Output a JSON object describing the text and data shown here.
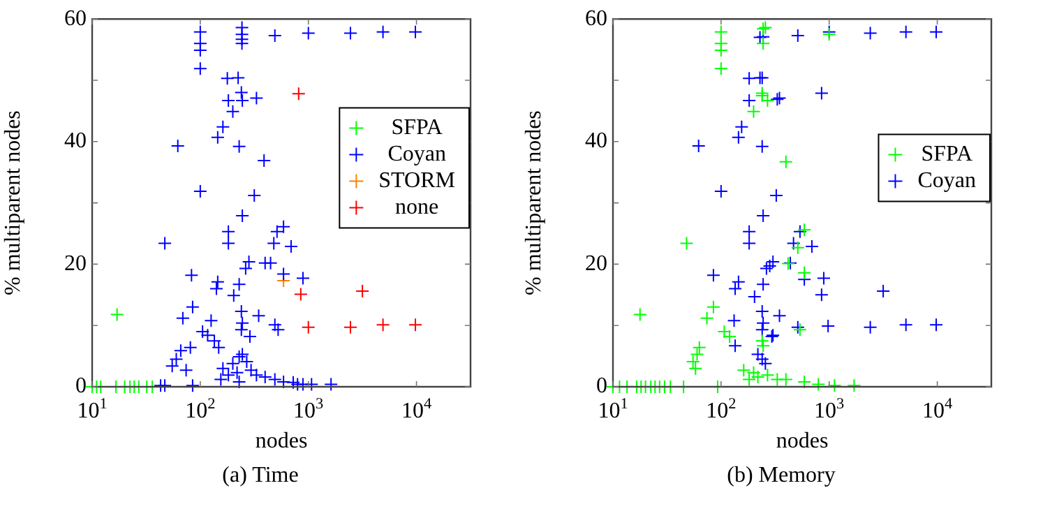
{
  "chart_data": [
    {
      "type": "scatter",
      "title": "(a) Time",
      "xlabel": "nodes",
      "ylabel": "% multiparent nodes",
      "log": "x",
      "marker": "cross",
      "grid": false,
      "legend": "right",
      "xlim": [
        10,
        31623
      ],
      "ylim": [
        0,
        60
      ],
      "xticks": [
        {
          "value": 10,
          "label": "10$^{1}$"
        },
        {
          "value": 100,
          "label": "10$^{2}$"
        },
        {
          "value": 1000,
          "label": "10$^{3}$"
        },
        {
          "value": 10000,
          "label": "10$^{4}$"
        }
      ],
      "yticks": [
        0,
        {
          "value": 10,
          "label": null
        },
        20,
        {
          "value": 30,
          "label": null
        },
        40,
        {
          "value": 50,
          "label": null
        },
        60
      ],
      "series": [
        {
          "name": "SFPA",
          "color": "#00ff00",
          "x": [
            17,
            10,
            11,
            12,
            16.6,
            20,
            22.4,
            24.5,
            27,
            32,
            36
          ],
          "values": [
            11.8,
            0,
            0,
            0,
            0,
            0,
            0,
            0,
            0,
            0,
            0
          ]
        },
        {
          "name": "Coyan",
          "color": "#0000ff",
          "x": [
            100,
            100,
            100,
            100,
            243,
            243,
            243,
            243,
            490,
            1000,
            2450,
            4900,
            9770,
            178,
            224,
            240,
            182,
            245,
            331,
            200,
            162,
            145,
            62,
            229,
            389,
            100,
            316,
            245,
            182,
            182,
            47,
            589,
            513,
            479,
            692,
            589,
            282,
            263,
            398,
            447,
            83,
            145,
            141,
            229,
            204,
            891,
            85,
            69,
            126,
            240,
            245,
            347,
            490,
            525,
            240,
            105,
            117,
            135,
            288,
            148,
            81,
            66,
            60,
            55,
            74,
            162,
            200,
            229,
            245,
            269,
            219,
            182,
            295,
            331,
            398,
            490,
            589,
            724,
            891,
            1070,
            1620,
            155,
            229,
            85,
            47,
            43,
            794
          ],
          "values": [
            57.9,
            56,
            54.9,
            51.9,
            58.6,
            57.5,
            56.7,
            56,
            57.3,
            57.7,
            57.7,
            57.9,
            57.9,
            50.3,
            50.4,
            48,
            46.7,
            46.7,
            47.1,
            44.9,
            42.4,
            40.7,
            39.3,
            39.2,
            36.9,
            31.9,
            31.2,
            27.9,
            25.3,
            23.4,
            23.4,
            26.1,
            25.3,
            23.4,
            22.9,
            18.4,
            20.4,
            19.3,
            20.2,
            20.2,
            18.2,
            17.1,
            16,
            16.7,
            14.9,
            17.7,
            13,
            11.2,
            10.8,
            12.3,
            10.4,
            11.6,
            10.1,
            9.3,
            9.3,
            9,
            8.4,
            7.5,
            8.2,
            6.4,
            6.4,
            5.9,
            4.5,
            3.4,
            2.7,
            3,
            3.8,
            4.9,
            5.3,
            4.1,
            2.3,
            1.9,
            2.7,
            1.9,
            1.6,
            1.2,
            0.8,
            0.7,
            0.4,
            0.4,
            0.4,
            1.2,
            0.8,
            0.2,
            0.2,
            0.2,
            0.4
          ]
        },
        {
          "name": "STORM",
          "color": "#ff8000",
          "x": [
            589
          ],
          "values": [
            17.3
          ]
        },
        {
          "name": "none",
          "color": "#ff0000",
          "x": [
            813,
            851,
            3160,
            1000,
            2450,
            4900,
            9770
          ],
          "values": [
            47.8,
            15.1,
            15.6,
            9.7,
            9.7,
            10.1,
            10.1
          ]
        }
      ]
    },
    {
      "type": "scatter",
      "title": "(b) Memory",
      "xlabel": "nodes",
      "ylabel": "% multiparent nodes",
      "log": "x",
      "marker": "cross",
      "grid": false,
      "legend": "right",
      "xlim": [
        10,
        31623
      ],
      "ylim": [
        0,
        60
      ],
      "xticks": [
        {
          "value": 10,
          "label": "10$^{1}$"
        },
        {
          "value": 100,
          "label": "10$^{2}$"
        },
        {
          "value": 1000,
          "label": "10$^{3}$"
        },
        {
          "value": 10000,
          "label": "10$^{4}$"
        }
      ],
      "yticks": [
        0,
        {
          "value": 10,
          "label": null
        },
        20,
        {
          "value": 30,
          "label": null
        },
        40,
        {
          "value": 50,
          "label": null
        },
        60
      ],
      "series": [
        {
          "name": "SFPA",
          "color": "#00ff00",
          "x": [
            100,
            100,
            100,
            100,
            245,
            245,
            240,
            269,
            200,
            398,
            48,
            17.8,
            85,
            74,
            107,
            120,
            63,
            60,
            55,
            58,
            245,
            257,
            1000,
            240,
            589,
            513,
            417,
            589,
            537,
            240,
            162,
            200,
            219,
            269,
            331,
            182,
            398,
            589,
            794,
            1120,
            1700,
            10,
            11.5,
            13.5,
            16.6,
            18.2,
            20,
            22.4,
            24.5,
            27,
            30,
            34,
            45,
            93
          ],
          "values": [
            57.9,
            56,
            54.9,
            51.9,
            58.4,
            56,
            47.9,
            46.7,
            44.9,
            36.7,
            23.4,
            11.8,
            13,
            11.2,
            9,
            8.2,
            6.4,
            5.3,
            4.1,
            3,
            6.7,
            58.6,
            57.5,
            47.5,
            25.6,
            22.7,
            20.1,
            18.6,
            9.3,
            7.5,
            2.7,
            2.3,
            1.6,
            1.9,
            1.2,
            1.2,
            1.2,
            0.8,
            0.4,
            0.2,
            0.2,
            0,
            0,
            0,
            0,
            0,
            0,
            0,
            0,
            0,
            0,
            0,
            0,
            0
          ]
        },
        {
          "name": "Coyan",
          "color": "#0000ff",
          "x": [
            229,
            245,
            513,
            1000,
            2400,
            5130,
            9770,
            182,
            240,
            182,
            331,
            155,
            145,
            62,
            240,
            100,
            324,
            245,
            182,
            182,
            85,
            145,
            135,
            245,
            204,
            263,
            302,
            132,
            240,
            245,
            240,
            302,
            135,
            240,
            257,
            219,
            229,
            347,
            851,
            537,
            468,
            692,
            282,
            437,
            589,
            891,
            851,
            3160,
            347,
            513,
            977,
            2400,
            5130,
            9770,
            295
          ],
          "values": [
            57,
            57.1,
            57.3,
            57.9,
            57.7,
            57.9,
            57.9,
            50.3,
            50.4,
            46.7,
            46.9,
            42.4,
            40.7,
            39.3,
            39.2,
            31.9,
            31.2,
            27.9,
            25.3,
            23.4,
            18.2,
            17.1,
            16,
            16.7,
            14.7,
            19.3,
            20.4,
            10.8,
            12.3,
            10.4,
            9.3,
            8.4,
            6.7,
            4.5,
            3.8,
            5.3,
            50.4,
            47.1,
            47.9,
            25.3,
            23.4,
            22.9,
            19.7,
            20.2,
            17.5,
            17.7,
            15,
            15.6,
            11.6,
            9.7,
            9.9,
            9.7,
            10.1,
            10.1,
            8.2
          ]
        }
      ]
    }
  ]
}
